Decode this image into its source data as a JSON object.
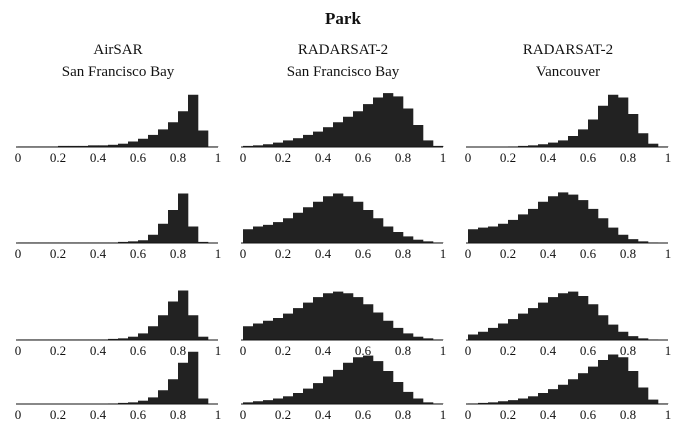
{
  "title": "Park",
  "chart_data": [
    {
      "type": "histogram",
      "title": "AirSAR",
      "subtitle": "San Francisco Bay",
      "color": "#222222",
      "xlim": [
        0,
        1
      ],
      "ylim": [
        0,
        100
      ],
      "xticks": [
        0,
        0.2,
        0.4,
        0.6,
        0.8,
        1
      ],
      "bins": [
        0,
        0.05,
        0.1,
        0.15,
        0.2,
        0.25,
        0.3,
        0.35,
        0.4,
        0.45,
        0.5,
        0.55,
        0.6,
        0.65,
        0.7,
        0.75,
        0.8,
        0.85,
        0.9,
        0.95,
        1
      ],
      "values": [
        1,
        1,
        1,
        1,
        2,
        2,
        2,
        3,
        3,
        4,
        6,
        10,
        15,
        22,
        32,
        45,
        65,
        95,
        30,
        1
      ]
    },
    {
      "type": "histogram",
      "title": "RADARSAT-2",
      "subtitle": "San Francisco Bay",
      "color": "#222222",
      "xlim": [
        0,
        1
      ],
      "ylim": [
        0,
        100
      ],
      "xticks": [
        0,
        0.2,
        0.4,
        0.6,
        0.8,
        1
      ],
      "bins": [
        0,
        0.05,
        0.1,
        0.15,
        0.2,
        0.25,
        0.3,
        0.35,
        0.4,
        0.45,
        0.5,
        0.55,
        0.6,
        0.65,
        0.7,
        0.75,
        0.8,
        0.85,
        0.9,
        0.95,
        1
      ],
      "values": [
        2,
        3,
        5,
        8,
        12,
        16,
        22,
        28,
        36,
        45,
        55,
        65,
        78,
        90,
        98,
        92,
        70,
        40,
        12,
        2
      ]
    },
    {
      "type": "histogram",
      "title": "RADARSAT-2",
      "subtitle": "Vancouver",
      "color": "#222222",
      "xlim": [
        0,
        1
      ],
      "ylim": [
        0,
        100
      ],
      "xticks": [
        0,
        0.2,
        0.4,
        0.6,
        0.8,
        1
      ],
      "bins": [
        0,
        0.05,
        0.1,
        0.15,
        0.2,
        0.25,
        0.3,
        0.35,
        0.4,
        0.45,
        0.5,
        0.55,
        0.6,
        0.65,
        0.7,
        0.75,
        0.8,
        0.85,
        0.9,
        0.95,
        1
      ],
      "values": [
        0,
        0,
        0,
        0,
        1,
        2,
        3,
        5,
        8,
        12,
        20,
        32,
        50,
        75,
        95,
        90,
        60,
        25,
        6,
        1
      ]
    },
    {
      "type": "histogram",
      "color": "#222222",
      "xlim": [
        0,
        1
      ],
      "ylim": [
        0,
        100
      ],
      "xticks": [
        0,
        0.2,
        0.4,
        0.6,
        0.8,
        1
      ],
      "bins": [
        0,
        0.05,
        0.1,
        0.15,
        0.2,
        0.25,
        0.3,
        0.35,
        0.4,
        0.45,
        0.5,
        0.55,
        0.6,
        0.65,
        0.7,
        0.75,
        0.8,
        0.85,
        0.9,
        0.95,
        1
      ],
      "values": [
        1,
        1,
        1,
        1,
        1,
        1,
        1,
        1,
        1,
        1,
        2,
        3,
        5,
        15,
        35,
        60,
        90,
        30,
        2,
        0
      ]
    },
    {
      "type": "histogram",
      "color": "#222222",
      "xlim": [
        0,
        1
      ],
      "ylim": [
        0,
        100
      ],
      "xticks": [
        0,
        0.2,
        0.4,
        0.6,
        0.8,
        1
      ],
      "bins": [
        0,
        0.05,
        0.1,
        0.15,
        0.2,
        0.25,
        0.3,
        0.35,
        0.4,
        0.45,
        0.5,
        0.55,
        0.6,
        0.65,
        0.7,
        0.75,
        0.8,
        0.85,
        0.9,
        0.95,
        1
      ],
      "values": [
        25,
        30,
        33,
        38,
        45,
        55,
        65,
        75,
        85,
        90,
        85,
        75,
        60,
        45,
        30,
        20,
        12,
        6,
        3,
        1
      ]
    },
    {
      "type": "histogram",
      "color": "#222222",
      "xlim": [
        0,
        1
      ],
      "ylim": [
        0,
        100
      ],
      "xticks": [
        0,
        0.2,
        0.4,
        0.6,
        0.8,
        1
      ],
      "bins": [
        0,
        0.05,
        0.1,
        0.15,
        0.2,
        0.25,
        0.3,
        0.35,
        0.4,
        0.45,
        0.5,
        0.55,
        0.6,
        0.65,
        0.7,
        0.75,
        0.8,
        0.85,
        0.9,
        0.95,
        1
      ],
      "values": [
        25,
        28,
        30,
        35,
        42,
        52,
        62,
        75,
        85,
        92,
        88,
        78,
        62,
        45,
        28,
        15,
        7,
        3,
        1,
        0
      ]
    },
    {
      "type": "histogram",
      "color": "#222222",
      "xlim": [
        0,
        1
      ],
      "ylim": [
        0,
        100
      ],
      "xticks": [
        0,
        0.2,
        0.4,
        0.6,
        0.8,
        1
      ],
      "bins": [
        0,
        0.05,
        0.1,
        0.15,
        0.2,
        0.25,
        0.3,
        0.35,
        0.4,
        0.45,
        0.5,
        0.55,
        0.6,
        0.65,
        0.7,
        0.75,
        0.8,
        0.85,
        0.9,
        0.95,
        1
      ],
      "values": [
        1,
        1,
        1,
        1,
        1,
        1,
        1,
        1,
        1,
        2,
        3,
        6,
        12,
        25,
        45,
        70,
        90,
        45,
        6,
        0
      ]
    },
    {
      "type": "histogram",
      "color": "#222222",
      "xlim": [
        0,
        1
      ],
      "ylim": [
        0,
        100
      ],
      "xticks": [
        0,
        0.2,
        0.4,
        0.6,
        0.8,
        1
      ],
      "bins": [
        0,
        0.05,
        0.1,
        0.15,
        0.2,
        0.25,
        0.3,
        0.35,
        0.4,
        0.45,
        0.5,
        0.55,
        0.6,
        0.65,
        0.7,
        0.75,
        0.8,
        0.85,
        0.9,
        0.95,
        1
      ],
      "values": [
        25,
        30,
        35,
        40,
        48,
        58,
        68,
        78,
        85,
        88,
        85,
        78,
        65,
        50,
        35,
        22,
        12,
        6,
        3,
        1
      ]
    },
    {
      "type": "histogram",
      "color": "#222222",
      "xlim": [
        0,
        1
      ],
      "ylim": [
        0,
        100
      ],
      "xticks": [
        0,
        0.2,
        0.4,
        0.6,
        0.8,
        1
      ],
      "bins": [
        0,
        0.05,
        0.1,
        0.15,
        0.2,
        0.25,
        0.3,
        0.35,
        0.4,
        0.45,
        0.5,
        0.55,
        0.6,
        0.65,
        0.7,
        0.75,
        0.8,
        0.85,
        0.9,
        0.95,
        1
      ],
      "values": [
        10,
        15,
        22,
        30,
        38,
        48,
        58,
        68,
        78,
        85,
        88,
        80,
        65,
        45,
        28,
        15,
        7,
        3,
        1,
        0
      ]
    },
    {
      "type": "histogram",
      "color": "#222222",
      "xlim": [
        0,
        1
      ],
      "ylim": [
        0,
        100
      ],
      "xticks": [
        0,
        0.2,
        0.4,
        0.6,
        0.8,
        1
      ],
      "bins": [
        0,
        0.05,
        0.1,
        0.15,
        0.2,
        0.25,
        0.3,
        0.35,
        0.4,
        0.45,
        0.5,
        0.55,
        0.6,
        0.65,
        0.7,
        0.75,
        0.8,
        0.85,
        0.9,
        0.95,
        1
      ],
      "values": [
        0,
        0,
        0,
        0,
        0,
        0,
        0,
        0,
        0,
        1,
        2,
        3,
        6,
        12,
        25,
        45,
        75,
        95,
        10,
        0
      ]
    },
    {
      "type": "histogram",
      "color": "#222222",
      "xlim": [
        0,
        1
      ],
      "ylim": [
        0,
        100
      ],
      "xticks": [
        0,
        0.2,
        0.4,
        0.6,
        0.8,
        1
      ],
      "bins": [
        0,
        0.05,
        0.1,
        0.15,
        0.2,
        0.25,
        0.3,
        0.35,
        0.4,
        0.45,
        0.5,
        0.55,
        0.6,
        0.65,
        0.7,
        0.75,
        0.8,
        0.85,
        0.9,
        0.95,
        1
      ],
      "values": [
        3,
        5,
        7,
        10,
        14,
        20,
        28,
        38,
        50,
        62,
        75,
        85,
        88,
        78,
        60,
        40,
        22,
        10,
        3,
        1
      ]
    },
    {
      "type": "histogram",
      "color": "#222222",
      "xlim": [
        0,
        1
      ],
      "ylim": [
        0,
        100
      ],
      "xticks": [
        0,
        0.2,
        0.4,
        0.6,
        0.8,
        1
      ],
      "bins": [
        0,
        0.05,
        0.1,
        0.15,
        0.2,
        0.25,
        0.3,
        0.35,
        0.4,
        0.45,
        0.5,
        0.55,
        0.6,
        0.65,
        0.7,
        0.75,
        0.8,
        0.85,
        0.9,
        0.95,
        1
      ],
      "values": [
        1,
        2,
        3,
        5,
        7,
        10,
        14,
        20,
        27,
        35,
        45,
        56,
        68,
        80,
        90,
        85,
        60,
        30,
        8,
        1
      ]
    }
  ]
}
